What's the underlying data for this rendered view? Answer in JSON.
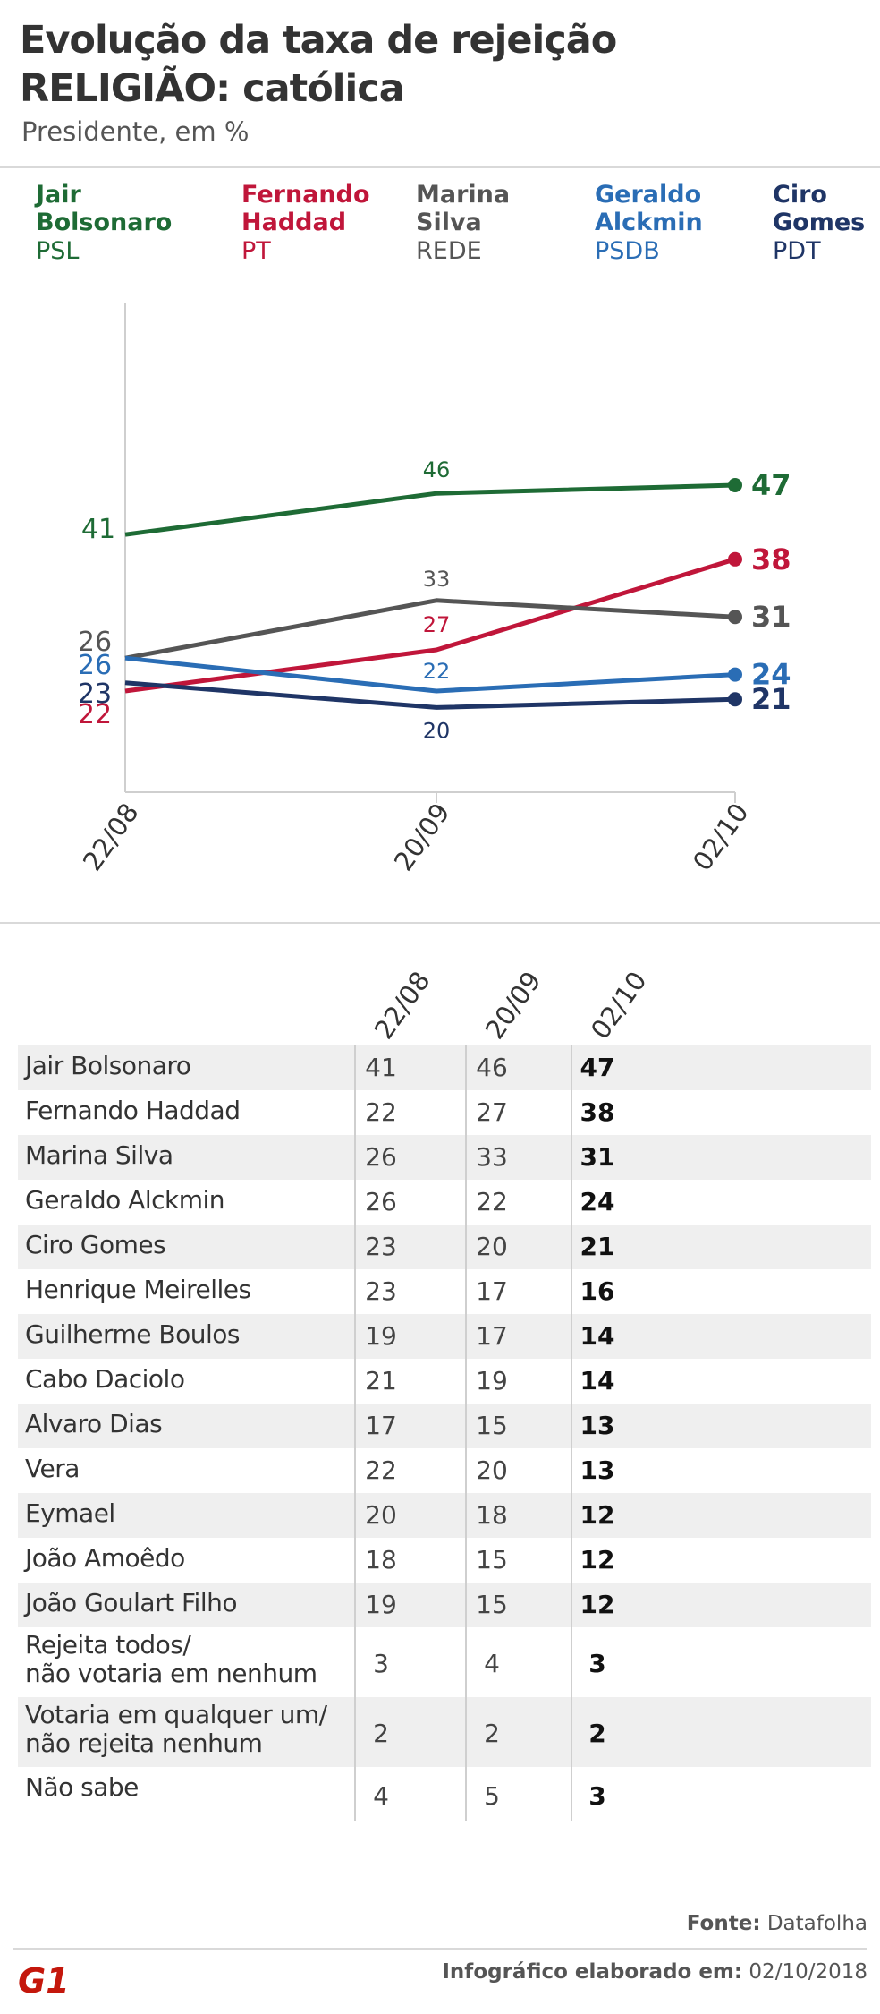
{
  "header": {
    "title_line1": "Evolução da taxa de rejeição",
    "title_line2": "RELIGIÃO: católica",
    "subtitle": "Presidente, em %"
  },
  "legend": [
    {
      "name_line1": "Jair",
      "name_line2": "Bolsonaro",
      "party": "PSL",
      "color": "#1e6b35"
    },
    {
      "name_line1": "Fernando",
      "name_line2": "Haddad",
      "party": "PT",
      "color": "#c0163a"
    },
    {
      "name_line1": "Marina",
      "name_line2": "Silva",
      "party": "REDE",
      "color": "#555555"
    },
    {
      "name_line1": "Geraldo",
      "name_line2": "Alckmin",
      "party": "PSDB",
      "color": "#2a6db5"
    },
    {
      "name_line1": "Ciro",
      "name_line2": "Gomes",
      "party": "PDT",
      "color": "#1f3566"
    }
  ],
  "chart_data": {
    "type": "line",
    "x": [
      "22/08",
      "20/09",
      "02/10"
    ],
    "series": [
      {
        "name": "Jair Bolsonaro",
        "color": "#1e6b35",
        "values": [
          41,
          46,
          47
        ],
        "labels": [
          "41",
          "46",
          "47"
        ]
      },
      {
        "name": "Fernando Haddad",
        "color": "#c0163a",
        "values": [
          22,
          27,
          38
        ],
        "labels": [
          "22",
          "27",
          "38"
        ]
      },
      {
        "name": "Marina Silva",
        "color": "#555555",
        "values": [
          26,
          33,
          31
        ],
        "labels": [
          "26",
          "33",
          "31"
        ]
      },
      {
        "name": "Geraldo Alckmin",
        "color": "#2a6db5",
        "values": [
          26,
          22,
          24
        ],
        "labels": [
          "26",
          "22",
          "24"
        ]
      },
      {
        "name": "Ciro Gomes",
        "color": "#1f3566",
        "values": [
          23,
          20,
          21
        ],
        "labels": [
          "23",
          "20",
          "21"
        ]
      }
    ],
    "ylim": [
      0,
      60
    ],
    "grid": false,
    "legend": "top"
  },
  "table": {
    "columns": [
      "22/08",
      "20/09",
      "02/10"
    ],
    "rows": [
      {
        "name": "Jair Bolsonaro",
        "v": [
          "41",
          "46",
          "47"
        ]
      },
      {
        "name": "Fernando Haddad",
        "v": [
          "22",
          "27",
          "38"
        ]
      },
      {
        "name": "Marina Silva",
        "v": [
          "26",
          "33",
          "31"
        ]
      },
      {
        "name": "Geraldo Alckmin",
        "v": [
          "26",
          "22",
          "24"
        ]
      },
      {
        "name": "Ciro Gomes",
        "v": [
          "23",
          "20",
          "21"
        ]
      },
      {
        "name": "Henrique Meirelles",
        "v": [
          "23",
          "17",
          "16"
        ]
      },
      {
        "name": "Guilherme Boulos",
        "v": [
          "19",
          "17",
          "14"
        ]
      },
      {
        "name": "Cabo Daciolo",
        "v": [
          "21",
          "19",
          "14"
        ]
      },
      {
        "name": "Alvaro Dias",
        "v": [
          "17",
          "15",
          "13"
        ]
      },
      {
        "name": "Vera",
        "v": [
          "22",
          "20",
          "13"
        ]
      },
      {
        "name": "Eymael",
        "v": [
          "20",
          "18",
          "12"
        ]
      },
      {
        "name": "João Amoêdo",
        "v": [
          "18",
          "15",
          "12"
        ]
      },
      {
        "name": "João Goulart Filho",
        "v": [
          "19",
          "15",
          "12"
        ]
      },
      {
        "name": "Rejeita todos/\nnão votaria em nenhum",
        "v": [
          "3",
          "4",
          "3"
        ]
      },
      {
        "name": "Votaria em qualquer um/\nnão rejeita nenhum",
        "v": [
          "2",
          "2",
          "2"
        ]
      },
      {
        "name": "Não sabe",
        "v": [
          "4",
          "5",
          "3"
        ]
      }
    ]
  },
  "footer": {
    "source_label": "Fonte:",
    "source_value": "Datafolha",
    "credit_label": "Infográfico elaborado em:",
    "credit_date": "02/10/2018",
    "logo_text": "G1",
    "logo_color": "#c4170c"
  }
}
